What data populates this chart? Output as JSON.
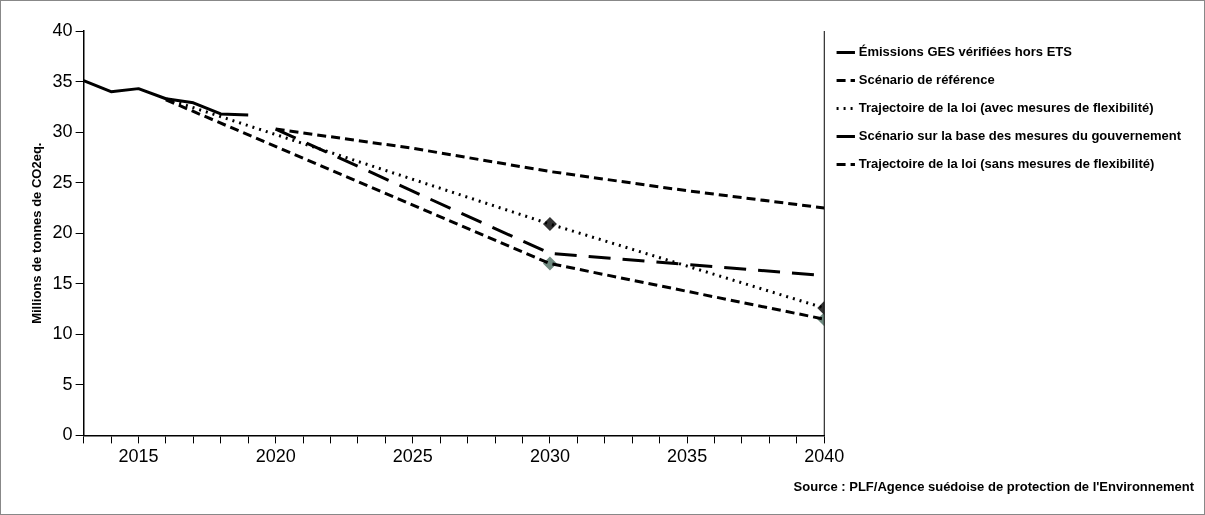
{
  "chart_data": {
    "type": "line",
    "ylabel": "Millions de tonnes de CO2eq.",
    "xlim": [
      2013,
      2040
    ],
    "xticks": [
      {
        "value": 2013,
        "label": null
      },
      {
        "value": 2014,
        "label": null
      },
      2015,
      {
        "value": 2016,
        "label": null
      },
      {
        "value": 2017,
        "label": null
      },
      {
        "value": 2018,
        "label": null
      },
      {
        "value": 2019,
        "label": null
      },
      2020,
      {
        "value": 2021,
        "label": null
      },
      {
        "value": 2022,
        "label": null
      },
      {
        "value": 2023,
        "label": null
      },
      {
        "value": 2024,
        "label": null
      },
      2025,
      {
        "value": 2026,
        "label": null
      },
      {
        "value": 2027,
        "label": null
      },
      {
        "value": 2028,
        "label": null
      },
      {
        "value": 2029,
        "label": null
      },
      2030,
      {
        "value": 2031,
        "label": null
      },
      {
        "value": 2032,
        "label": null
      },
      {
        "value": 2033,
        "label": null
      },
      {
        "value": 2034,
        "label": null
      },
      2035,
      {
        "value": 2036,
        "label": null
      },
      {
        "value": 2037,
        "label": null
      },
      {
        "value": 2038,
        "label": null
      },
      {
        "value": 2039,
        "label": null
      },
      2040
    ],
    "ylim": [
      0,
      40
    ],
    "yticks": [
      0,
      5,
      10,
      15,
      20,
      25,
      30,
      35,
      40
    ],
    "grid": false,
    "legend": "right",
    "marker": "none",
    "series": [
      {
        "name": "Émissions GES vérifiées hors ETS",
        "color": "#000000",
        "line_style": "solid",
        "x": [
          2013,
          2014,
          2015,
          2016,
          2017,
          2018,
          2019
        ],
        "values": [
          35.1,
          34.0,
          34.3,
          33.3,
          32.9,
          31.8,
          31.7
        ]
      },
      {
        "name": "Scénario de référence",
        "color": "#000000",
        "line_style": "dashed",
        "x": [
          2020,
          2025,
          2030,
          2035,
          2040
        ],
        "values": [
          30.3,
          28.4,
          26.1,
          24.2,
          22.5
        ]
      },
      {
        "name": "Trajectoire de la loi (avec mesures de flexibilité)",
        "color": "#000000",
        "line_style": "dotted",
        "x": [
          2016,
          2030,
          2040
        ],
        "values": [
          33.3,
          20.9,
          12.6
        ]
      },
      {
        "name": "Scénario sur la base des mesures du gouvernement",
        "color": "#000000",
        "line_style": "longdash",
        "x": [
          2020,
          2030,
          2040
        ],
        "values": [
          30.3,
          18.0,
          15.8
        ]
      },
      {
        "name": "Trajectoire de la loi (sans mesures de flexibilité)",
        "color": "#000000",
        "line_style": "dashed",
        "x": [
          2016,
          2030,
          2040
        ],
        "values": [
          33.2,
          17.0,
          11.5
        ]
      },
      {
        "type": "scatter",
        "marker": "diamond",
        "color": "#333333",
        "x": [
          2030,
          2040
        ],
        "values": [
          20.9,
          12.6
        ]
      },
      {
        "type": "scatter",
        "marker": "diamond",
        "color": "#6f8a80",
        "x": [
          2030,
          2040
        ],
        "values": [
          17.0,
          11.5
        ]
      }
    ],
    "annotations": [
      "Source : PLF/Agence suédoise de protection de l'Environnement"
    ]
  }
}
